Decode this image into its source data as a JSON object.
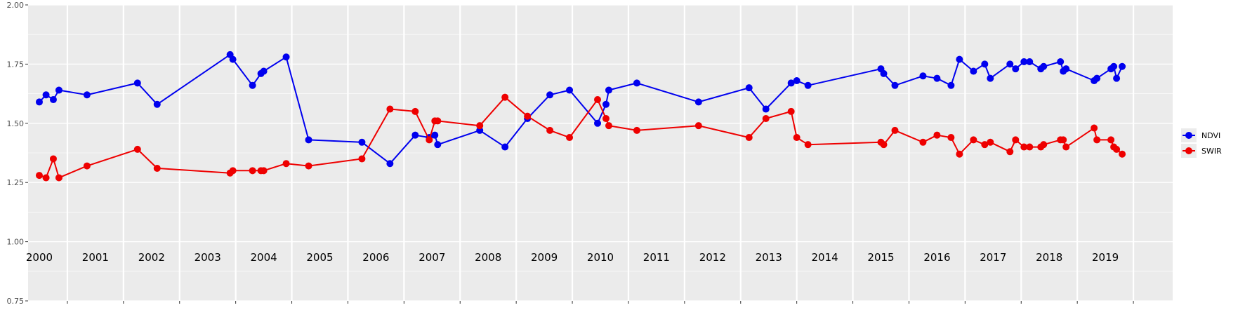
{
  "chart_data": {
    "type": "line",
    "title": "",
    "xlabel": "",
    "ylabel": "",
    "ylim": [
      0.75,
      2.0
    ],
    "y_ticks": [
      "0.75",
      "1.00",
      "1.25",
      "1.50",
      "1.75",
      "2.00"
    ],
    "x_range": [
      1999.8,
      2020.2
    ],
    "year_labels": [
      "2000",
      "2001",
      "2002",
      "2003",
      "2004",
      "2005",
      "2006",
      "2007",
      "2008",
      "2009",
      "2010",
      "2011",
      "2012",
      "2013",
      "2014",
      "2015",
      "2016",
      "2017",
      "2018",
      "2019"
    ],
    "grid": true,
    "legend_position": "right",
    "colors": {
      "NDVI": "#0000ee",
      "SWIR": "#ee0000",
      "panel": "#ebebeb",
      "grid": "#ffffff"
    },
    "series": [
      {
        "name": "NDVI",
        "color": "#0000ee",
        "x": [
          2000.0,
          2000.12,
          2000.25,
          2000.35,
          2000.85,
          2001.75,
          2002.1,
          2003.4,
          2003.45,
          2003.8,
          2003.95,
          2004.0,
          2004.4,
          2004.8,
          2005.75,
          2006.25,
          2006.7,
          2006.95,
          2007.05,
          2007.1,
          2007.85,
          2008.3,
          2008.7,
          2009.1,
          2009.45,
          2009.95,
          2010.1,
          2010.15,
          2010.65,
          2011.75,
          2012.65,
          2012.95,
          2013.4,
          2013.5,
          2013.7,
          2015.0,
          2015.05,
          2015.25,
          2015.75,
          2016.0,
          2016.25,
          2016.4,
          2016.65,
          2016.85,
          2016.95,
          2017.3,
          2017.4,
          2017.55,
          2017.65,
          2017.85,
          2017.9,
          2018.2,
          2018.25,
          2018.3,
          2018.8,
          2018.85,
          2019.1,
          2019.15,
          2019.2,
          2019.3
        ],
        "values": [
          1.59,
          1.62,
          1.6,
          1.64,
          1.62,
          1.67,
          1.58,
          1.79,
          1.77,
          1.66,
          1.71,
          1.72,
          1.78,
          1.43,
          1.42,
          1.33,
          1.45,
          1.44,
          1.45,
          1.41,
          1.47,
          1.4,
          1.52,
          1.62,
          1.64,
          1.5,
          1.58,
          1.64,
          1.67,
          1.59,
          1.65,
          1.56,
          1.67,
          1.68,
          1.66,
          1.73,
          1.71,
          1.66,
          1.7,
          1.69,
          1.66,
          1.77,
          1.72,
          1.75,
          1.69,
          1.75,
          1.73,
          1.76,
          1.76,
          1.73,
          1.74,
          1.76,
          1.72,
          1.73,
          1.68,
          1.69,
          1.73,
          1.74,
          1.69,
          1.74
        ]
      },
      {
        "name": "SWIR",
        "color": "#ee0000",
        "x": [
          2000.0,
          2000.12,
          2000.25,
          2000.35,
          2000.85,
          2001.75,
          2002.1,
          2003.4,
          2003.45,
          2003.8,
          2003.95,
          2004.0,
          2004.4,
          2004.8,
          2005.75,
          2006.25,
          2006.7,
          2006.95,
          2007.05,
          2007.1,
          2007.85,
          2008.3,
          2008.7,
          2009.1,
          2009.45,
          2009.95,
          2010.1,
          2010.15,
          2010.65,
          2011.75,
          2012.65,
          2012.95,
          2013.4,
          2013.5,
          2013.7,
          2015.0,
          2015.05,
          2015.25,
          2015.75,
          2016.0,
          2016.25,
          2016.4,
          2016.65,
          2016.85,
          2016.95,
          2017.3,
          2017.4,
          2017.55,
          2017.65,
          2017.85,
          2017.9,
          2018.2,
          2018.25,
          2018.3,
          2018.8,
          2018.85,
          2019.1,
          2019.15,
          2019.2,
          2019.3
        ],
        "values": [
          1.28,
          1.27,
          1.35,
          1.27,
          1.32,
          1.39,
          1.31,
          1.29,
          1.3,
          1.3,
          1.3,
          1.3,
          1.33,
          1.32,
          1.35,
          1.56,
          1.55,
          1.43,
          1.51,
          1.51,
          1.49,
          1.61,
          1.53,
          1.47,
          1.44,
          1.6,
          1.52,
          1.49,
          1.47,
          1.49,
          1.44,
          1.52,
          1.55,
          1.44,
          1.41,
          1.42,
          1.41,
          1.47,
          1.42,
          1.45,
          1.44,
          1.37,
          1.43,
          1.41,
          1.42,
          1.38,
          1.43,
          1.4,
          1.4,
          1.4,
          1.41,
          1.43,
          1.43,
          1.4,
          1.48,
          1.43,
          1.43,
          1.4,
          1.39,
          1.37
        ]
      }
    ]
  }
}
